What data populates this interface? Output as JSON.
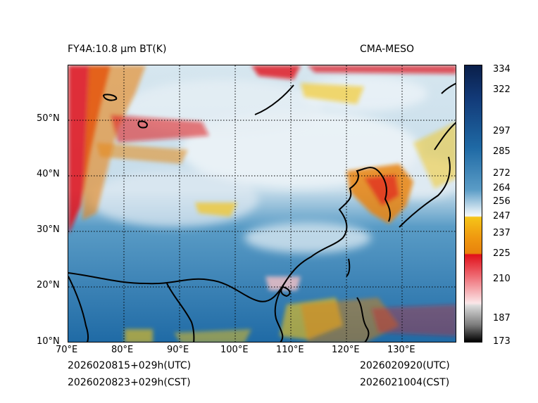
{
  "title_left": "FY4A:10.8 µm BT(K)",
  "title_right": "CMA-MESO",
  "footer": {
    "init_utc": "2026020815+029h(UTC)",
    "init_cst": "2026020823+029h(CST)",
    "valid_utc": "2026020920(UTC)",
    "valid_cst": "2026021004(CST)"
  },
  "map": {
    "x_ticks": [
      "70°E",
      "80°E",
      "90°E",
      "100°E",
      "110°E",
      "120°E",
      "130°E"
    ],
    "y_ticks": [
      "50°N",
      "40°N",
      "30°N",
      "20°N",
      "10°N"
    ]
  },
  "colorbar": {
    "labels": [
      "334",
      "322",
      "297",
      "285",
      "272",
      "264",
      "256",
      "247",
      "237",
      "225",
      "210",
      "187",
      "173"
    ],
    "colors": {
      "dark": "#0a1f4a",
      "blue": "#1f6aa5",
      "light": "#cfe3ef",
      "white": "#f4f7f9",
      "yellow": "#f5c518",
      "orange": "#e8820c",
      "red": "#e0101a",
      "pink": "#f7c2c6",
      "gray": "#7a7a7a",
      "black": "#000000"
    }
  }
}
